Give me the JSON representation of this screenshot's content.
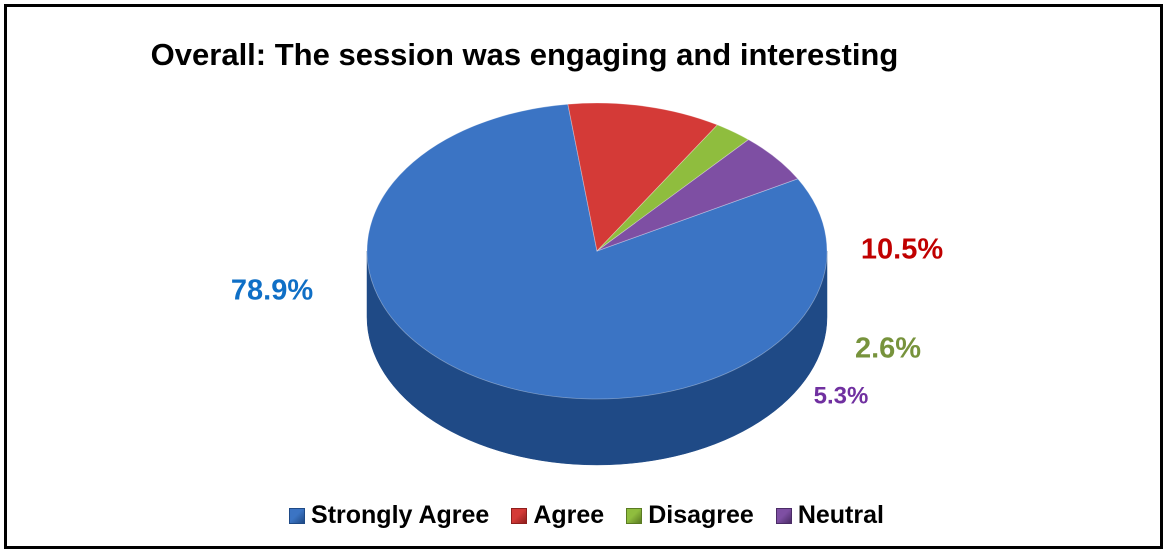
{
  "chart_data": {
    "type": "pie",
    "title": "Overall: The session was engaging and interesting",
    "slices": [
      {
        "label": "Strongly Agree",
        "value": 78.9,
        "value_label": "78.9%",
        "color": "#3b74c4",
        "side_color": "#1f4a86",
        "label_color": "#0f6fc6"
      },
      {
        "label": "Agree",
        "value": 10.5,
        "value_label": "10.5%",
        "color": "#d43a37",
        "side_color": "#8e1f1d",
        "label_color": "#c00000"
      },
      {
        "label": "Disagree",
        "value": 2.6,
        "value_label": "2.6%",
        "color": "#8fbd3e",
        "side_color": "#5a7b22",
        "label_color": "#77933c"
      },
      {
        "label": "Neutral",
        "value": 5.3,
        "value_label": "5.3%",
        "color": "#7e4fa3",
        "side_color": "#4b2c66",
        "label_color": "#7030a0"
      }
    ],
    "legend_position": "bottom",
    "style": "3d"
  }
}
